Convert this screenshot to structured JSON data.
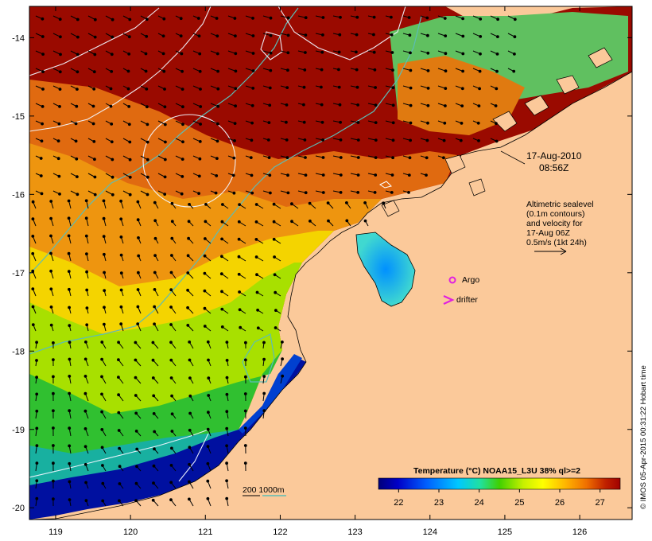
{
  "map": {
    "date": "17-Aug-2010",
    "time": "08:56Z",
    "altimetry_note": [
      "Altimetric sealevel",
      "(0.1m contours)",
      "and velocity for",
      "17-Aug 06Z",
      "0.5m/s (1kt 24h)"
    ],
    "markers": {
      "argo_label": "Argo",
      "drifter_label": "drifter"
    },
    "depth_label": "200  1000m",
    "colorbar": {
      "title": "Temperature (°C) NOAA15_L3U 38% ql>=2",
      "min": 21.5,
      "max": 27.5,
      "ticks": [
        "22",
        "23",
        "24",
        "25",
        "26",
        "27"
      ]
    },
    "credit": "© IMOS 05-Apr-2015 00:31:22 Hobart time",
    "axes": {
      "lon_ticks": [
        "119",
        "120",
        "121",
        "122",
        "123",
        "124",
        "125",
        "126"
      ],
      "lat_ticks": [
        "-14",
        "-15",
        "-16",
        "-17",
        "-18",
        "-19",
        "-20"
      ],
      "lon_range": [
        118.65,
        126.7
      ],
      "lat_range": [
        -13.6,
        -20.15
      ]
    },
    "colors": {
      "land": "#fbc99a",
      "frame": "#000000",
      "contour": "#e8f4ff",
      "isobath": "#5bbdb6",
      "argo": "#e020e0",
      "drifter": "#e020e0"
    }
  }
}
